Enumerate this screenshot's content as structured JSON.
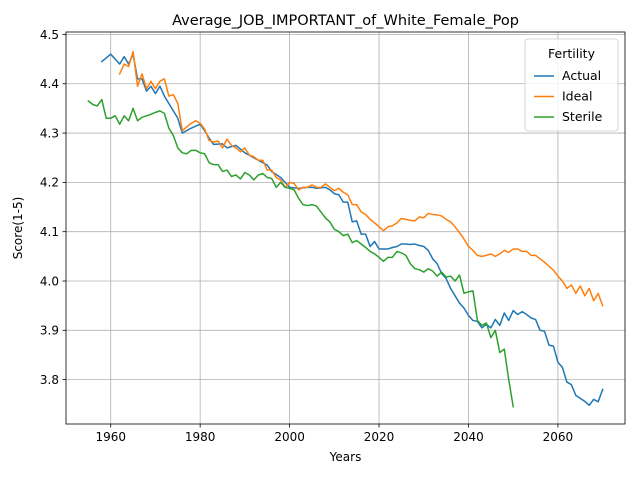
{
  "chart_data": {
    "type": "line",
    "title": "Average_JOB_IMPORTANT_of_White_Female_Pop",
    "xlabel": "Years",
    "ylabel": "Score(1-5)",
    "xlim": [
      1950,
      2075
    ],
    "ylim": [
      3.71,
      4.505
    ],
    "xticks": [
      1960,
      1980,
      2000,
      2020,
      2040,
      2060
    ],
    "yticks": [
      3.8,
      3.9,
      4.0,
      4.1,
      4.2,
      4.3,
      4.4,
      4.5
    ],
    "grid": true,
    "legend": {
      "title": "Fertility",
      "placement": "top-right"
    },
    "series": [
      {
        "name": "Actual",
        "color": "#1f77b4",
        "points": [
          [
            1958,
            4.445
          ],
          [
            1960,
            4.46
          ],
          [
            1962,
            4.44
          ],
          [
            1963,
            4.455
          ],
          [
            1964,
            4.44
          ],
          [
            1965,
            4.46
          ],
          [
            1966,
            4.41
          ],
          [
            1967,
            4.41
          ],
          [
            1968,
            4.385
          ],
          [
            1969,
            4.395
          ],
          [
            1970,
            4.38
          ],
          [
            1971,
            4.395
          ],
          [
            1972,
            4.375
          ],
          [
            1973,
            4.36
          ],
          [
            1974,
            4.345
          ],
          [
            1975,
            4.33
          ],
          [
            1976,
            4.3
          ],
          [
            1978,
            4.31
          ],
          [
            1980,
            4.318
          ],
          [
            1981,
            4.305
          ],
          [
            1982,
            4.29
          ],
          [
            1983,
            4.277
          ],
          [
            1985,
            4.278
          ],
          [
            1986,
            4.27
          ],
          [
            1988,
            4.275
          ],
          [
            1990,
            4.26
          ],
          [
            1992,
            4.25
          ],
          [
            1993,
            4.245
          ],
          [
            1995,
            4.235
          ],
          [
            1996,
            4.222
          ],
          [
            1998,
            4.21
          ],
          [
            1999,
            4.2
          ],
          [
            2000,
            4.19
          ],
          [
            2002,
            4.188
          ],
          [
            2004,
            4.19
          ],
          [
            2005,
            4.19
          ],
          [
            2006,
            4.188
          ],
          [
            2008,
            4.19
          ],
          [
            2009,
            4.185
          ],
          [
            2010,
            4.177
          ],
          [
            2011,
            4.175
          ],
          [
            2012,
            4.16
          ],
          [
            2013,
            4.16
          ],
          [
            2014,
            4.12
          ],
          [
            2015,
            4.122
          ],
          [
            2016,
            4.095
          ],
          [
            2017,
            4.095
          ],
          [
            2018,
            4.07
          ],
          [
            2019,
            4.08
          ],
          [
            2020,
            4.065
          ],
          [
            2022,
            4.065
          ],
          [
            2023,
            4.068
          ],
          [
            2024,
            4.07
          ],
          [
            2025,
            4.075
          ],
          [
            2026,
            4.075
          ],
          [
            2027,
            4.074
          ],
          [
            2028,
            4.075
          ],
          [
            2029,
            4.072
          ],
          [
            2030,
            4.07
          ],
          [
            2031,
            4.062
          ],
          [
            2032,
            4.045
          ],
          [
            2033,
            4.035
          ],
          [
            2034,
            4.015
          ],
          [
            2035,
            4.005
          ],
          [
            2036,
            3.985
          ],
          [
            2037,
            3.97
          ],
          [
            2038,
            3.955
          ],
          [
            2039,
            3.945
          ],
          [
            2040,
            3.93
          ],
          [
            2041,
            3.92
          ],
          [
            2042,
            3.918
          ],
          [
            2043,
            3.905
          ],
          [
            2044,
            3.912
          ],
          [
            2045,
            3.905
          ],
          [
            2046,
            3.922
          ],
          [
            2047,
            3.91
          ],
          [
            2048,
            3.935
          ],
          [
            2049,
            3.92
          ],
          [
            2050,
            3.94
          ],
          [
            2051,
            3.932
          ],
          [
            2052,
            3.938
          ],
          [
            2053,
            3.932
          ],
          [
            2054,
            3.925
          ],
          [
            2055,
            3.922
          ],
          [
            2056,
            3.9
          ],
          [
            2057,
            3.898
          ],
          [
            2058,
            3.87
          ],
          [
            2059,
            3.868
          ],
          [
            2060,
            3.835
          ],
          [
            2061,
            3.825
          ],
          [
            2062,
            3.795
          ],
          [
            2063,
            3.79
          ],
          [
            2064,
            3.768
          ],
          [
            2065,
            3.762
          ],
          [
            2066,
            3.756
          ],
          [
            2067,
            3.748
          ],
          [
            2068,
            3.76
          ],
          [
            2069,
            3.755
          ],
          [
            2070,
            3.78
          ]
        ]
      },
      {
        "name": "Ideal",
        "color": "#ff7f0e",
        "points": [
          [
            1962,
            4.42
          ],
          [
            1963,
            4.44
          ],
          [
            1964,
            4.435
          ],
          [
            1965,
            4.465
          ],
          [
            1966,
            4.395
          ],
          [
            1967,
            4.42
          ],
          [
            1968,
            4.39
          ],
          [
            1969,
            4.405
          ],
          [
            1970,
            4.39
          ],
          [
            1971,
            4.405
          ],
          [
            1972,
            4.41
          ],
          [
            1973,
            4.375
          ],
          [
            1974,
            4.378
          ],
          [
            1975,
            4.36
          ],
          [
            1976,
            4.305
          ],
          [
            1978,
            4.32
          ],
          [
            1979,
            4.325
          ],
          [
            1980,
            4.32
          ],
          [
            1981,
            4.308
          ],
          [
            1982,
            4.285
          ],
          [
            1983,
            4.282
          ],
          [
            1984,
            4.284
          ],
          [
            1985,
            4.27
          ],
          [
            1986,
            4.288
          ],
          [
            1987,
            4.275
          ],
          [
            1988,
            4.27
          ],
          [
            1989,
            4.262
          ],
          [
            1990,
            4.27
          ],
          [
            1991,
            4.255
          ],
          [
            1992,
            4.252
          ],
          [
            1993,
            4.245
          ],
          [
            1994,
            4.245
          ],
          [
            1995,
            4.225
          ],
          [
            1996,
            4.225
          ],
          [
            1997,
            4.21
          ],
          [
            1998,
            4.205
          ],
          [
            1999,
            4.19
          ],
          [
            2000,
            4.2
          ],
          [
            2001,
            4.198
          ],
          [
            2002,
            4.185
          ],
          [
            2003,
            4.19
          ],
          [
            2004,
            4.19
          ],
          [
            2005,
            4.195
          ],
          [
            2006,
            4.19
          ],
          [
            2007,
            4.19
          ],
          [
            2008,
            4.197
          ],
          [
            2009,
            4.19
          ],
          [
            2010,
            4.183
          ],
          [
            2011,
            4.188
          ],
          [
            2012,
            4.18
          ],
          [
            2013,
            4.175
          ],
          [
            2014,
            4.155
          ],
          [
            2015,
            4.155
          ],
          [
            2016,
            4.14
          ],
          [
            2017,
            4.135
          ],
          [
            2018,
            4.125
          ],
          [
            2019,
            4.118
          ],
          [
            2020,
            4.11
          ],
          [
            2021,
            4.102
          ],
          [
            2022,
            4.11
          ],
          [
            2023,
            4.112
          ],
          [
            2024,
            4.118
          ],
          [
            2025,
            4.127
          ],
          [
            2026,
            4.125
          ],
          [
            2027,
            4.123
          ],
          [
            2028,
            4.122
          ],
          [
            2029,
            4.13
          ],
          [
            2030,
            4.128
          ],
          [
            2031,
            4.137
          ],
          [
            2032,
            4.135
          ],
          [
            2033,
            4.134
          ],
          [
            2034,
            4.132
          ],
          [
            2035,
            4.125
          ],
          [
            2036,
            4.12
          ],
          [
            2037,
            4.11
          ],
          [
            2038,
            4.098
          ],
          [
            2039,
            4.085
          ],
          [
            2040,
            4.07
          ],
          [
            2041,
            4.062
          ],
          [
            2042,
            4.052
          ],
          [
            2043,
            4.05
          ],
          [
            2044,
            4.052
          ],
          [
            2045,
            4.055
          ],
          [
            2046,
            4.05
          ],
          [
            2047,
            4.055
          ],
          [
            2048,
            4.062
          ],
          [
            2049,
            4.058
          ],
          [
            2050,
            4.065
          ],
          [
            2051,
            4.065
          ],
          [
            2052,
            4.06
          ],
          [
            2053,
            4.06
          ],
          [
            2054,
            4.052
          ],
          [
            2055,
            4.052
          ],
          [
            2056,
            4.045
          ],
          [
            2057,
            4.038
          ],
          [
            2058,
            4.03
          ],
          [
            2059,
            4.022
          ],
          [
            2060,
            4.01
          ],
          [
            2061,
            4.0
          ],
          [
            2062,
            3.985
          ],
          [
            2063,
            3.992
          ],
          [
            2064,
            3.975
          ],
          [
            2065,
            3.99
          ],
          [
            2066,
            3.97
          ],
          [
            2067,
            3.985
          ],
          [
            2068,
            3.96
          ],
          [
            2069,
            3.975
          ],
          [
            2070,
            3.95
          ]
        ]
      },
      {
        "name": "Sterile",
        "color": "#2ca02c",
        "points": [
          [
            1955,
            4.365
          ],
          [
            1956,
            4.358
          ],
          [
            1957,
            4.355
          ],
          [
            1958,
            4.368
          ],
          [
            1959,
            4.33
          ],
          [
            1960,
            4.33
          ],
          [
            1961,
            4.335
          ],
          [
            1962,
            4.318
          ],
          [
            1963,
            4.335
          ],
          [
            1964,
            4.325
          ],
          [
            1965,
            4.35
          ],
          [
            1966,
            4.325
          ],
          [
            1967,
            4.332
          ],
          [
            1968,
            4.335
          ],
          [
            1969,
            4.338
          ],
          [
            1970,
            4.342
          ],
          [
            1971,
            4.345
          ],
          [
            1972,
            4.34
          ],
          [
            1973,
            4.31
          ],
          [
            1974,
            4.295
          ],
          [
            1975,
            4.27
          ],
          [
            1976,
            4.26
          ],
          [
            1977,
            4.258
          ],
          [
            1978,
            4.265
          ],
          [
            1979,
            4.265
          ],
          [
            1980,
            4.26
          ],
          [
            1981,
            4.258
          ],
          [
            1982,
            4.24
          ],
          [
            1983,
            4.236
          ],
          [
            1984,
            4.236
          ],
          [
            1985,
            4.222
          ],
          [
            1986,
            4.225
          ],
          [
            1987,
            4.212
          ],
          [
            1988,
            4.215
          ],
          [
            1989,
            4.207
          ],
          [
            1990,
            4.22
          ],
          [
            1991,
            4.215
          ],
          [
            1992,
            4.205
          ],
          [
            1993,
            4.215
          ],
          [
            1994,
            4.218
          ],
          [
            1995,
            4.21
          ],
          [
            1996,
            4.208
          ],
          [
            1997,
            4.19
          ],
          [
            1998,
            4.2
          ],
          [
            1999,
            4.19
          ],
          [
            2000,
            4.188
          ],
          [
            2001,
            4.185
          ],
          [
            2002,
            4.168
          ],
          [
            2003,
            4.155
          ],
          [
            2004,
            4.153
          ],
          [
            2005,
            4.155
          ],
          [
            2006,
            4.152
          ],
          [
            2007,
            4.14
          ],
          [
            2008,
            4.128
          ],
          [
            2009,
            4.12
          ],
          [
            2010,
            4.105
          ],
          [
            2011,
            4.1
          ],
          [
            2012,
            4.092
          ],
          [
            2013,
            4.095
          ],
          [
            2014,
            4.078
          ],
          [
            2015,
            4.082
          ],
          [
            2016,
            4.075
          ],
          [
            2017,
            4.068
          ],
          [
            2018,
            4.06
          ],
          [
            2019,
            4.055
          ],
          [
            2020,
            4.048
          ],
          [
            2021,
            4.04
          ],
          [
            2022,
            4.048
          ],
          [
            2023,
            4.048
          ],
          [
            2024,
            4.06
          ],
          [
            2025,
            4.057
          ],
          [
            2026,
            4.052
          ],
          [
            2027,
            4.035
          ],
          [
            2028,
            4.025
          ],
          [
            2029,
            4.023
          ],
          [
            2030,
            4.018
          ],
          [
            2031,
            4.025
          ],
          [
            2032,
            4.02
          ],
          [
            2033,
            4.01
          ],
          [
            2034,
            4.018
          ],
          [
            2035,
            4.008
          ],
          [
            2036,
            4.01
          ],
          [
            2037,
            4.0
          ],
          [
            2038,
            4.012
          ],
          [
            2039,
            3.975
          ],
          [
            2040,
            3.978
          ],
          [
            2041,
            3.98
          ],
          [
            2042,
            3.92
          ],
          [
            2043,
            3.91
          ],
          [
            2044,
            3.915
          ],
          [
            2045,
            3.885
          ],
          [
            2046,
            3.9
          ],
          [
            2047,
            3.855
          ],
          [
            2048,
            3.862
          ],
          [
            2049,
            3.8
          ],
          [
            2050,
            3.745
          ]
        ]
      }
    ]
  }
}
